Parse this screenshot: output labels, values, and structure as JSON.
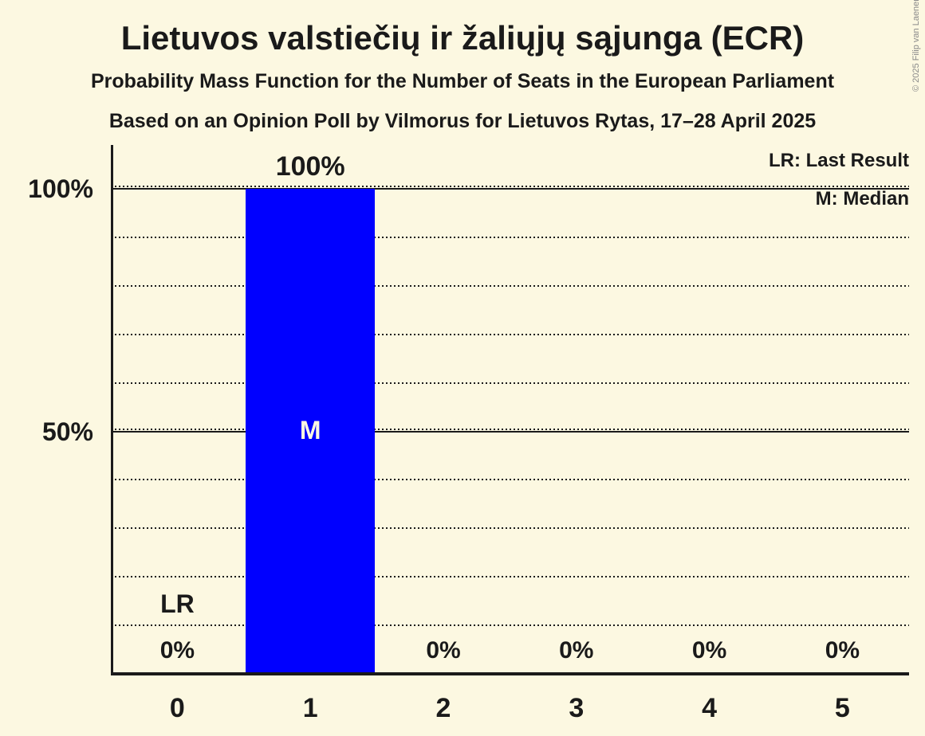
{
  "header": {
    "title": "Lietuvos valstiečių ir žaliųjų sąjunga (ECR)",
    "subtitle1": "Probability Mass Function for the Number of Seats in the European Parliament",
    "subtitle2": "Based on an Opinion Poll by Vilmorus for Lietuvos Rytas, 17–28 April 2025"
  },
  "legend": {
    "lr": "LR: Last Result",
    "m": "M: Median"
  },
  "copyright": "© 2025 Filip van Laenen",
  "colors": {
    "background": "#FCF8E1",
    "bar": "#0000FF",
    "text": "#1A1A1A",
    "bar_inner_label": "#FCF8E1",
    "copyright": "#8A8A8A"
  },
  "chart_data": {
    "type": "bar",
    "title": "Probability Mass Function for the Number of Seats in the European Parliament",
    "categories": [
      "0",
      "1",
      "2",
      "3",
      "4",
      "5"
    ],
    "values": [
      0,
      100,
      0,
      0,
      0,
      0
    ],
    "value_labels": [
      "0%",
      "100%",
      "0%",
      "0%",
      "0%",
      "0%"
    ],
    "yticks": [
      {
        "value": 50,
        "label": "50%"
      },
      {
        "value": 100,
        "label": "100%"
      }
    ],
    "gridline_step_pct": 10,
    "ylim": [
      0,
      109
    ],
    "xlabel": "",
    "ylabel": "",
    "grid": "dotted horizontal lines every 10%, solid at 50% and 100%",
    "legend_position": "top-right",
    "annotations": {
      "last_result_label": "LR",
      "last_result_category": "0",
      "median_label": "M",
      "median_category": "1"
    }
  }
}
